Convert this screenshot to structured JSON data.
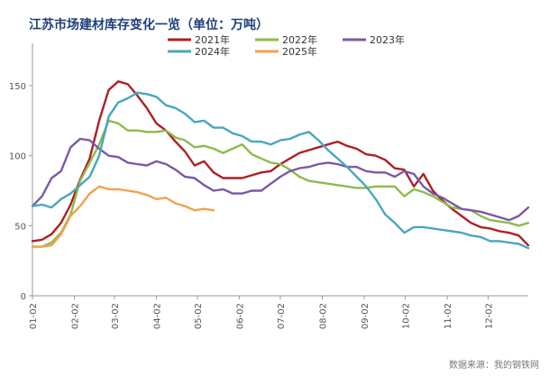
{
  "chart_data": {
    "type": "line",
    "title": "江苏市场建材库存变化一览（单位：万吨）",
    "source": "数据来源：我的钢铁网",
    "xlabel": "",
    "ylabel": "",
    "ylim": [
      0,
      150
    ],
    "yticks": [
      "0",
      "50",
      "100",
      "150"
    ],
    "xlim": [
      1,
      53
    ],
    "xticks": [
      {
        "label": "01-02",
        "x": 1
      },
      {
        "label": "02-02",
        "x": 5.4
      },
      {
        "label": "03-02",
        "x": 9.6
      },
      {
        "label": "04-02",
        "x": 14.0
      },
      {
        "label": "05-02",
        "x": 18.3
      },
      {
        "label": "06-02",
        "x": 22.7
      },
      {
        "label": "07-02",
        "x": 27.0
      },
      {
        "label": "08-02",
        "x": 31.4
      },
      {
        "label": "09-02",
        "x": 35.8
      },
      {
        "label": "10-02",
        "x": 40.1
      },
      {
        "label": "11-02",
        "x": 44.5
      },
      {
        "label": "12-02",
        "x": 48.8
      }
    ],
    "grid": false,
    "legend_position": "top",
    "series": [
      {
        "name": "2021年",
        "color": "#b01f24",
        "points": [
          [
            1,
            39
          ],
          [
            2,
            40
          ],
          [
            3,
            44
          ],
          [
            4,
            52
          ],
          [
            5,
            65
          ],
          [
            6,
            83
          ],
          [
            7,
            98
          ],
          [
            8,
            125
          ],
          [
            9,
            147
          ],
          [
            10,
            153
          ],
          [
            11,
            151
          ],
          [
            12,
            143
          ],
          [
            13,
            134
          ],
          [
            14,
            123
          ],
          [
            15,
            118
          ],
          [
            16,
            110
          ],
          [
            17,
            103
          ],
          [
            18,
            93
          ],
          [
            19,
            96
          ],
          [
            20,
            88
          ],
          [
            21,
            84
          ],
          [
            22,
            84
          ],
          [
            23,
            84
          ],
          [
            24,
            86
          ],
          [
            25,
            88
          ],
          [
            26,
            89
          ],
          [
            27,
            94
          ],
          [
            28,
            98
          ],
          [
            29,
            102
          ],
          [
            30,
            104
          ],
          [
            31,
            106
          ],
          [
            32,
            108
          ],
          [
            33,
            110
          ],
          [
            34,
            107
          ],
          [
            35,
            105
          ],
          [
            36,
            101
          ],
          [
            37,
            100
          ],
          [
            38,
            97
          ],
          [
            39,
            91
          ],
          [
            40,
            90
          ],
          [
            41,
            78
          ],
          [
            42,
            87
          ],
          [
            43,
            75
          ],
          [
            44,
            68
          ],
          [
            45,
            62
          ],
          [
            46,
            57
          ],
          [
            47,
            52
          ],
          [
            48,
            49
          ],
          [
            49,
            48
          ],
          [
            50,
            46
          ],
          [
            51,
            45
          ],
          [
            52,
            43
          ],
          [
            53,
            36
          ]
        ]
      },
      {
        "name": "2022年",
        "color": "#8dbb4d",
        "points": [
          [
            1,
            35
          ],
          [
            2,
            35
          ],
          [
            3,
            38
          ],
          [
            4,
            45
          ],
          [
            5,
            58
          ],
          [
            6,
            82
          ],
          [
            7,
            95
          ],
          [
            8,
            108
          ],
          [
            9,
            125
          ],
          [
            10,
            123
          ],
          [
            11,
            118
          ],
          [
            12,
            118
          ],
          [
            13,
            117
          ],
          [
            14,
            117
          ],
          [
            15,
            118
          ],
          [
            16,
            113
          ],
          [
            17,
            111
          ],
          [
            18,
            106
          ],
          [
            19,
            107
          ],
          [
            20,
            105
          ],
          [
            21,
            102
          ],
          [
            22,
            105
          ],
          [
            23,
            108
          ],
          [
            24,
            101
          ],
          [
            25,
            98
          ],
          [
            26,
            95
          ],
          [
            27,
            94
          ],
          [
            28,
            90
          ],
          [
            29,
            85
          ],
          [
            30,
            82
          ],
          [
            31,
            81
          ],
          [
            32,
            80
          ],
          [
            33,
            79
          ],
          [
            34,
            78
          ],
          [
            35,
            77
          ],
          [
            36,
            77
          ],
          [
            37,
            78
          ],
          [
            38,
            78
          ],
          [
            39,
            78
          ],
          [
            40,
            71
          ],
          [
            41,
            76
          ],
          [
            42,
            74
          ],
          [
            43,
            71
          ],
          [
            44,
            67
          ],
          [
            45,
            63
          ],
          [
            46,
            62
          ],
          [
            47,
            61
          ],
          [
            48,
            57
          ],
          [
            49,
            54
          ],
          [
            50,
            53
          ],
          [
            51,
            52
          ],
          [
            52,
            50
          ],
          [
            53,
            52
          ]
        ]
      },
      {
        "name": "2023年",
        "color": "#7a59a5",
        "points": [
          [
            1,
            64
          ],
          [
            2,
            71
          ],
          [
            3,
            84
          ],
          [
            4,
            89
          ],
          [
            5,
            106
          ],
          [
            6,
            112
          ],
          [
            7,
            111
          ],
          [
            8,
            105
          ],
          [
            9,
            100
          ],
          [
            10,
            99
          ],
          [
            11,
            95
          ],
          [
            12,
            94
          ],
          [
            13,
            93
          ],
          [
            14,
            96
          ],
          [
            15,
            94
          ],
          [
            16,
            90
          ],
          [
            17,
            85
          ],
          [
            18,
            84
          ],
          [
            19,
            79
          ],
          [
            20,
            75
          ],
          [
            21,
            76
          ],
          [
            22,
            73
          ],
          [
            23,
            73
          ],
          [
            24,
            75
          ],
          [
            25,
            75
          ],
          [
            26,
            80
          ],
          [
            27,
            85
          ],
          [
            28,
            89
          ],
          [
            29,
            91
          ],
          [
            30,
            92
          ],
          [
            31,
            94
          ],
          [
            32,
            95
          ],
          [
            33,
            94
          ],
          [
            34,
            92
          ],
          [
            35,
            92
          ],
          [
            36,
            89
          ],
          [
            37,
            88
          ],
          [
            38,
            88
          ],
          [
            39,
            85
          ],
          [
            40,
            89
          ],
          [
            41,
            87
          ],
          [
            42,
            78
          ],
          [
            43,
            73
          ],
          [
            44,
            70
          ],
          [
            45,
            66
          ],
          [
            46,
            62
          ],
          [
            47,
            61
          ],
          [
            48,
            60
          ],
          [
            49,
            58
          ],
          [
            50,
            56
          ],
          [
            51,
            54
          ],
          [
            52,
            57
          ],
          [
            53,
            63
          ]
        ]
      },
      {
        "name": "2024年",
        "color": "#49a6bf",
        "points": [
          [
            1,
            64
          ],
          [
            2,
            65
          ],
          [
            3,
            63
          ],
          [
            4,
            69
          ],
          [
            5,
            73
          ],
          [
            6,
            79
          ],
          [
            7,
            85
          ],
          [
            8,
            100
          ],
          [
            9,
            128
          ],
          [
            10,
            138
          ],
          [
            11,
            141
          ],
          [
            12,
            145
          ],
          [
            13,
            144
          ],
          [
            14,
            142
          ],
          [
            15,
            136
          ],
          [
            16,
            134
          ],
          [
            17,
            130
          ],
          [
            18,
            124
          ],
          [
            19,
            125
          ],
          [
            20,
            120
          ],
          [
            21,
            120
          ],
          [
            22,
            116
          ],
          [
            23,
            114
          ],
          [
            24,
            110
          ],
          [
            25,
            110
          ],
          [
            26,
            108
          ],
          [
            27,
            111
          ],
          [
            28,
            112
          ],
          [
            29,
            115
          ],
          [
            30,
            117
          ],
          [
            31,
            111
          ],
          [
            32,
            104
          ],
          [
            33,
            98
          ],
          [
            34,
            92
          ],
          [
            35,
            85
          ],
          [
            36,
            78
          ],
          [
            37,
            69
          ],
          [
            38,
            58
          ],
          [
            39,
            52
          ],
          [
            40,
            45
          ],
          [
            41,
            49
          ],
          [
            42,
            49
          ],
          [
            43,
            48
          ],
          [
            44,
            47
          ],
          [
            45,
            46
          ],
          [
            46,
            45
          ],
          [
            47,
            43
          ],
          [
            48,
            42
          ],
          [
            49,
            39
          ],
          [
            50,
            39
          ],
          [
            51,
            38
          ],
          [
            52,
            37
          ],
          [
            53,
            34
          ]
        ]
      },
      {
        "name": "2025年",
        "color": "#f0a150",
        "points": [
          [
            1,
            35
          ],
          [
            2,
            35
          ],
          [
            3,
            36
          ],
          [
            4,
            44
          ],
          [
            5,
            57
          ],
          [
            6,
            64
          ],
          [
            7,
            73
          ],
          [
            8,
            78
          ],
          [
            9,
            76
          ],
          [
            10,
            76
          ],
          [
            11,
            75
          ],
          [
            12,
            74
          ],
          [
            13,
            72
          ],
          [
            14,
            69
          ],
          [
            15,
            70
          ],
          [
            16,
            66
          ],
          [
            17,
            64
          ],
          [
            18,
            61
          ],
          [
            19,
            62
          ],
          [
            20,
            61
          ]
        ]
      }
    ]
  }
}
